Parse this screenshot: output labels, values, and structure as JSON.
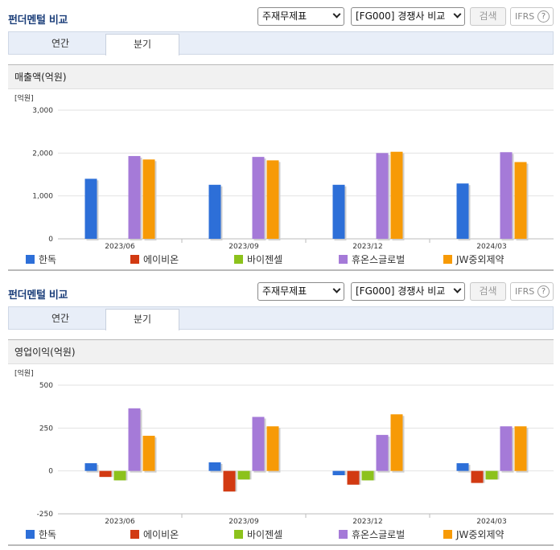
{
  "panels": [
    {
      "title": "펀더멘털 비교",
      "select1": "주재무제표",
      "select2": "[FG000] 경쟁사 비교",
      "search_label": "검색",
      "ifrs_label": "IFRS",
      "ifrs_help": "?",
      "tabs": [
        {
          "label": "연간"
        },
        {
          "label": "분기"
        }
      ],
      "active_tab": "분기",
      "chart_header": "매출액(억원)"
    },
    {
      "title": "펀더멘털 비교",
      "select1": "주재무제표",
      "select2": "[FG000] 경쟁사 비교",
      "search_label": "검색",
      "ifrs_label": "IFRS",
      "ifrs_help": "?",
      "tabs": [
        {
          "label": "연간"
        },
        {
          "label": "분기"
        }
      ],
      "active_tab": "분기",
      "chart_header": "영업이익(억원)"
    }
  ],
  "colors": {
    "한독": "#2d6fd8",
    "에이비온": "#d23a12",
    "바이젠셀": "#8cc21c",
    "휴온스글로벌": "#a57ad8",
    "JW중외제약": "#f79a06"
  },
  "chart_data": [
    {
      "type": "bar",
      "unit_label": "[억원]",
      "categories": [
        "2023/06",
        "2023/09",
        "2023/12",
        "2024/03"
      ],
      "ylim": [
        0,
        3000
      ],
      "yticks": [
        0,
        1000,
        2000,
        3000
      ],
      "ytick_labels": [
        "0",
        "1,000",
        "2,000",
        "3,000"
      ],
      "grid": true,
      "legend_position": "bottom",
      "series": [
        {
          "name": "한독",
          "values": [
            1400,
            1260,
            1260,
            1290
          ]
        },
        {
          "name": "에이비온",
          "values": [
            0,
            0,
            0,
            0
          ]
        },
        {
          "name": "바이젠셀",
          "values": [
            0,
            0,
            0,
            0
          ]
        },
        {
          "name": "휴온스글로벌",
          "values": [
            1930,
            1910,
            2000,
            2020
          ]
        },
        {
          "name": "JW중외제약",
          "values": [
            1850,
            1830,
            2030,
            1790
          ]
        }
      ]
    },
    {
      "type": "bar",
      "unit_label": "[억원]",
      "categories": [
        "2023/06",
        "2023/09",
        "2023/12",
        "2024/03"
      ],
      "ylim": [
        -250,
        500
      ],
      "yticks": [
        -250,
        0,
        250,
        500
      ],
      "ytick_labels": [
        "-250",
        "0",
        "250",
        "500"
      ],
      "grid": true,
      "legend_position": "bottom",
      "series": [
        {
          "name": "한독",
          "values": [
            45,
            50,
            -25,
            45
          ]
        },
        {
          "name": "에이비온",
          "values": [
            -35,
            -120,
            -80,
            -70
          ]
        },
        {
          "name": "바이젠셀",
          "values": [
            -55,
            -50,
            -55,
            -50
          ]
        },
        {
          "name": "휴온스글로벌",
          "values": [
            365,
            315,
            210,
            260
          ]
        },
        {
          "name": "JW중외제약",
          "values": [
            205,
            260,
            330,
            260
          ]
        }
      ]
    }
  ]
}
